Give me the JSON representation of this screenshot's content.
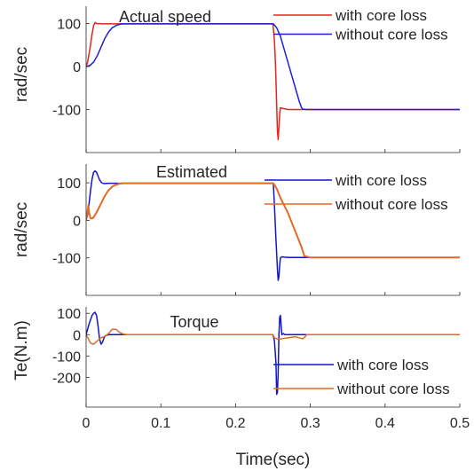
{
  "chart_data": [
    {
      "type": "line",
      "title": "Actual speed",
      "xlabel": "",
      "ylabel": "rad/sec",
      "xlim": [
        0,
        0.5
      ],
      "ylim": [
        -200,
        140
      ],
      "xticks": [
        0,
        0.1,
        0.2,
        0.3,
        0.4,
        0.5
      ],
      "yticks": [
        100,
        0,
        -100
      ],
      "yticklabels": [
        "100",
        "0",
        "-100"
      ],
      "grid": false,
      "legend": "top-right",
      "series": [
        {
          "name": "with core loss",
          "color": "#e8231f",
          "x": [
            0,
            0.002,
            0.005,
            0.008,
            0.01,
            0.012,
            0.014,
            0.016,
            0.018,
            0.02,
            0.03,
            0.05,
            0.1,
            0.15,
            0.2,
            0.25,
            0.25,
            0.252,
            0.2535,
            0.255,
            0.256,
            0.257,
            0.258,
            0.259,
            0.26,
            0.262,
            0.265,
            0.27,
            0.3,
            0.4,
            0.5
          ],
          "y": [
            0,
            10,
            40,
            75,
            95,
            102,
            100,
            99,
            100,
            99,
            99,
            99,
            99,
            99,
            99,
            99,
            99,
            60,
            0,
            -90,
            -150,
            -170,
            -140,
            -110,
            -96,
            -97,
            -98,
            -100,
            -100,
            -100,
            -100
          ]
        },
        {
          "name": "without core loss",
          "color": "#1f1fdb",
          "x": [
            0,
            0.005,
            0.01,
            0.015,
            0.02,
            0.025,
            0.03,
            0.035,
            0.04,
            0.045,
            0.05,
            0.055,
            0.06,
            0.1,
            0.15,
            0.2,
            0.25,
            0.2505,
            0.255,
            0.26,
            0.265,
            0.27,
            0.275,
            0.28,
            0.285,
            0.288,
            0.29,
            0.295,
            0.3,
            0.4,
            0.5
          ],
          "y": [
            0,
            2,
            10,
            25,
            45,
            65,
            80,
            90,
            95,
            98,
            99,
            99,
            99,
            99,
            99,
            99,
            99,
            99,
            90,
            70,
            40,
            10,
            -20,
            -50,
            -80,
            -95,
            -99,
            -100,
            -100,
            -100,
            -100
          ]
        }
      ]
    },
    {
      "type": "line",
      "title": "Estimated",
      "xlabel": "",
      "ylabel": "rad/sec",
      "xlim": [
        0,
        0.5
      ],
      "ylim": [
        -200,
        150
      ],
      "xticks": [
        0,
        0.1,
        0.2,
        0.3,
        0.4,
        0.5
      ],
      "yticks": [
        100,
        0,
        -100
      ],
      "yticklabels": [
        "100",
        "0",
        "-100"
      ],
      "grid": false,
      "legend": "top-right",
      "series": [
        {
          "name": "with core loss",
          "color": "#1414c8",
          "x": [
            0,
            0.002,
            0.004,
            0.006,
            0.008,
            0.01,
            0.012,
            0.014,
            0.016,
            0.018,
            0.02,
            0.022,
            0.025,
            0.03,
            0.04,
            0.1,
            0.2,
            0.25,
            0.2505,
            0.252,
            0.254,
            0.256,
            0.257,
            0.258,
            0.259,
            0.26,
            0.262,
            0.265,
            0.27,
            0.3,
            0.5
          ],
          "y": [
            0,
            15,
            45,
            80,
            110,
            128,
            132,
            128,
            118,
            108,
            102,
            99,
            98,
            99,
            99,
            99,
            99,
            99,
            99,
            40,
            -50,
            -130,
            -160,
            -150,
            -120,
            -100,
            -97,
            -98,
            -99,
            -99,
            -99
          ]
        },
        {
          "name": "without core loss",
          "color": "#e36a26",
          "x": [
            0,
            0.002,
            0.003,
            0.004,
            0.006,
            0.008,
            0.01,
            0.015,
            0.02,
            0.025,
            0.03,
            0.035,
            0.04,
            0.045,
            0.05,
            0.055,
            0.06,
            0.1,
            0.15,
            0.2,
            0.25,
            0.2505,
            0.255,
            0.26,
            0.27,
            0.28,
            0.288,
            0.292,
            0.3,
            0.4,
            0.5
          ],
          "y": [
            0,
            25,
            40,
            20,
            5,
            5,
            8,
            25,
            45,
            65,
            80,
            90,
            95,
            98,
            99,
            99,
            99,
            99,
            99,
            99,
            99,
            99,
            85,
            60,
            20,
            -30,
            -70,
            -95,
            -99,
            -99,
            -99
          ]
        }
      ]
    },
    {
      "type": "line",
      "title": "Torque",
      "xlabel": "Time(sec)",
      "ylabel": "Te(N.m)",
      "xlim": [
        0,
        0.5
      ],
      "ylim": [
        -340,
        130
      ],
      "xticks": [
        0,
        0.1,
        0.2,
        0.3,
        0.4,
        0.5
      ],
      "xticklabels": [
        "0",
        "0.1",
        "0.2",
        "0.3",
        "0.4",
        "0.5"
      ],
      "yticks": [
        100,
        0,
        -100,
        -200
      ],
      "yticklabels": [
        "100",
        "0",
        "-100",
        "-200"
      ],
      "grid": false,
      "legend": "bottom-right",
      "series": [
        {
          "name": "with core loss",
          "color": "#1414c8",
          "x": [
            0,
            0.002,
            0.004,
            0.006,
            0.008,
            0.01,
            0.012,
            0.014,
            0.016,
            0.018,
            0.02,
            0.022,
            0.024,
            0.026,
            0.03,
            0.04,
            0.1,
            0.2,
            0.25,
            0.252,
            0.254,
            0.255,
            0.256,
            0.257,
            0.258,
            0.259,
            0.26,
            0.261,
            0.262,
            0.264,
            0.266,
            0.27,
            0.3,
            0.5
          ],
          "y": [
            0,
            25,
            50,
            70,
            90,
            100,
            105,
            90,
            40,
            -20,
            -45,
            -35,
            -15,
            -5,
            0,
            0,
            0,
            0,
            0,
            -30,
            -130,
            -280,
            -270,
            -180,
            0,
            80,
            90,
            40,
            0,
            5,
            0,
            0,
            0,
            0
          ]
        },
        {
          "name": "without core loss",
          "color": "#e36a26",
          "x": [
            0,
            0.003,
            0.006,
            0.01,
            0.015,
            0.02,
            0.025,
            0.03,
            0.035,
            0.04,
            0.045,
            0.05,
            0.055,
            0.06,
            0.1,
            0.2,
            0.25,
            0.252,
            0.255,
            0.26,
            0.27,
            0.28,
            0.29,
            0.293,
            0.295,
            0.3,
            0.5
          ],
          "y": [
            0,
            -20,
            -40,
            -45,
            -30,
            -15,
            -8,
            5,
            25,
            25,
            10,
            2,
            0,
            0,
            0,
            0,
            0,
            -15,
            -20,
            -20,
            -15,
            -10,
            -20,
            -10,
            0,
            0,
            0
          ]
        }
      ]
    }
  ]
}
